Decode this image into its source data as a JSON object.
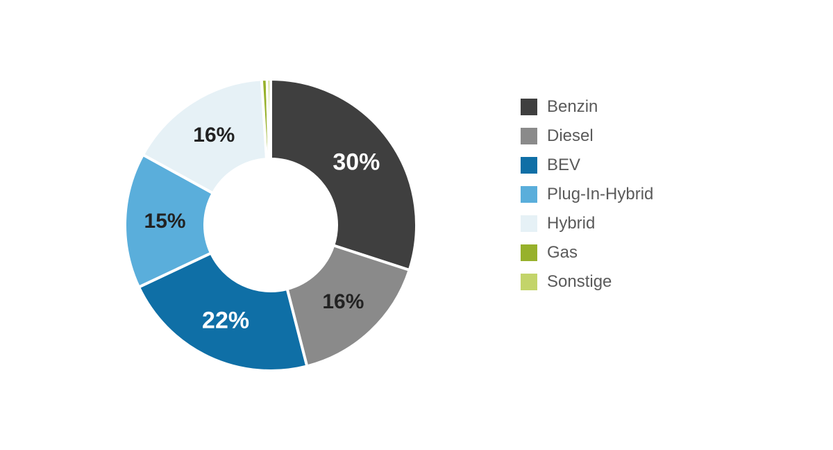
{
  "chart": {
    "type": "donut",
    "background_color": "#ffffff",
    "outer_radius": 210,
    "inner_radius": 95,
    "gap_color": "#ffffff",
    "gap_width": 4,
    "label_fontsize_large": 34,
    "label_fontsize_small": 30,
    "label_colors": {
      "dark": "#222222",
      "light": "#ffffff"
    },
    "legend_fontsize": 24,
    "legend_text_color": "#5a5a5a",
    "series": [
      {
        "key": "benzin",
        "label": "Benzin",
        "value": 30,
        "show_pct": true,
        "color": "#3f3f3f",
        "label_color": "light"
      },
      {
        "key": "diesel",
        "label": "Diesel",
        "value": 16,
        "show_pct": true,
        "color": "#8a8a8a",
        "label_color": "dark"
      },
      {
        "key": "bev",
        "label": "BEV",
        "value": 22,
        "show_pct": true,
        "color": "#0f6fa6",
        "label_color": "light"
      },
      {
        "key": "plugin",
        "label": "Plug-In-Hybrid",
        "value": 15,
        "show_pct": true,
        "color": "#5aaedb",
        "label_color": "dark"
      },
      {
        "key": "hybrid",
        "label": "Hybrid",
        "value": 16,
        "show_pct": true,
        "color": "#e6f1f6",
        "label_color": "dark"
      },
      {
        "key": "gas",
        "label": "Gas",
        "value": 0.6,
        "show_pct": false,
        "color": "#97b12b",
        "label_color": "dark"
      },
      {
        "key": "sonstige",
        "label": "Sonstige",
        "value": 0.4,
        "show_pct": false,
        "color": "#c3d46a",
        "label_color": "dark"
      }
    ]
  }
}
